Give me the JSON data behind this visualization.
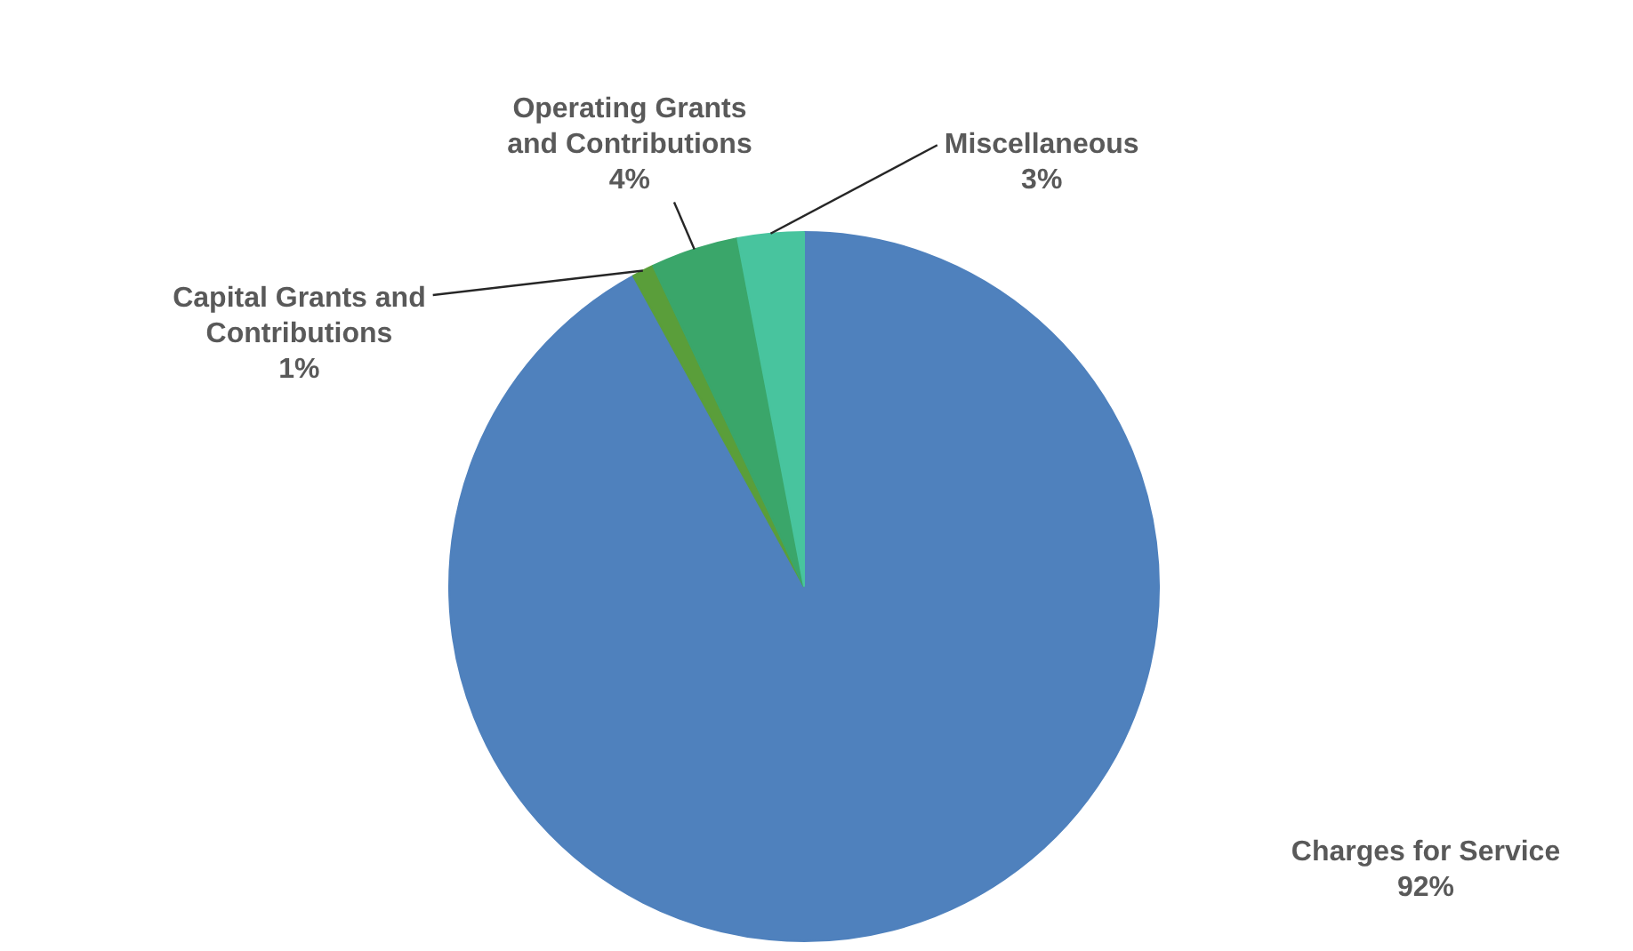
{
  "chart_data": {
    "type": "pie",
    "categories": [
      "Charges for Service",
      "Capital Grants and Contributions",
      "Operating Grants and Contributions",
      "Miscellaneous"
    ],
    "values": [
      92,
      1,
      4,
      3
    ],
    "colors": [
      "#4f81bd",
      "#5a9e3a",
      "#3aa66a",
      "#48c49e"
    ],
    "value_labels": [
      "92%",
      "1%",
      "4%",
      "3%"
    ],
    "legend": false
  }
}
